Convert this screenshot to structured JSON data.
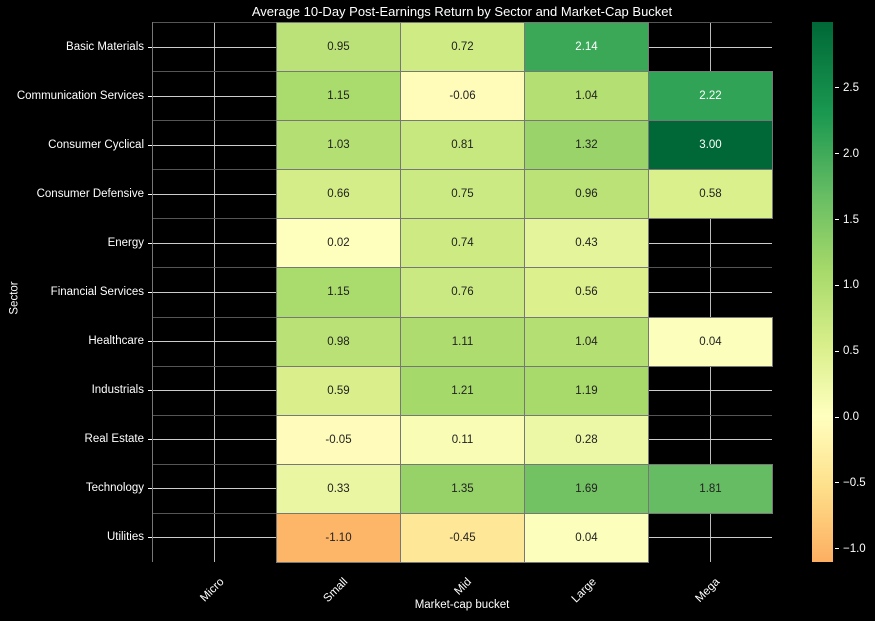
{
  "chart_data": {
    "type": "heatmap",
    "title": "Average 10-Day Post-Earnings Return by Sector and Market-Cap Bucket",
    "xlabel": "Market-cap bucket",
    "ylabel": "Sector",
    "x_categories": [
      "Micro",
      "Small",
      "Mid",
      "Large",
      "Mega"
    ],
    "y_categories": [
      "Basic Materials",
      "Communication Services",
      "Consumer Cyclical",
      "Consumer Defensive",
      "Energy",
      "Financial Services",
      "Healthcare",
      "Industrials",
      "Real Estate",
      "Technology",
      "Utilities"
    ],
    "values": [
      [
        null,
        0.95,
        0.72,
        2.14,
        null
      ],
      [
        null,
        1.15,
        -0.06,
        1.04,
        2.22
      ],
      [
        null,
        1.03,
        0.81,
        1.32,
        3.0
      ],
      [
        null,
        0.66,
        0.75,
        0.96,
        0.58
      ],
      [
        null,
        0.02,
        0.74,
        0.43,
        null
      ],
      [
        null,
        1.15,
        0.76,
        0.56,
        null
      ],
      [
        null,
        0.98,
        1.11,
        1.04,
        0.04
      ],
      [
        null,
        0.59,
        1.21,
        1.19,
        null
      ],
      [
        null,
        -0.05,
        0.11,
        0.28,
        null
      ],
      [
        null,
        0.33,
        1.35,
        1.69,
        1.81
      ],
      [
        null,
        -1.1,
        -0.45,
        0.04,
        null
      ]
    ],
    "colormap": "RdYlGn",
    "colorbar": {
      "min": -1.1,
      "max": 3.0,
      "ticks": [
        "2.5",
        "2.0",
        "1.5",
        "1.0",
        "0.5",
        "0.0",
        "−0.5",
        "−1.0"
      ],
      "tick_values": [
        2.5,
        2.0,
        1.5,
        1.0,
        0.5,
        0.0,
        -0.5,
        -1.0
      ]
    },
    "grid": true,
    "background": "#000000"
  }
}
